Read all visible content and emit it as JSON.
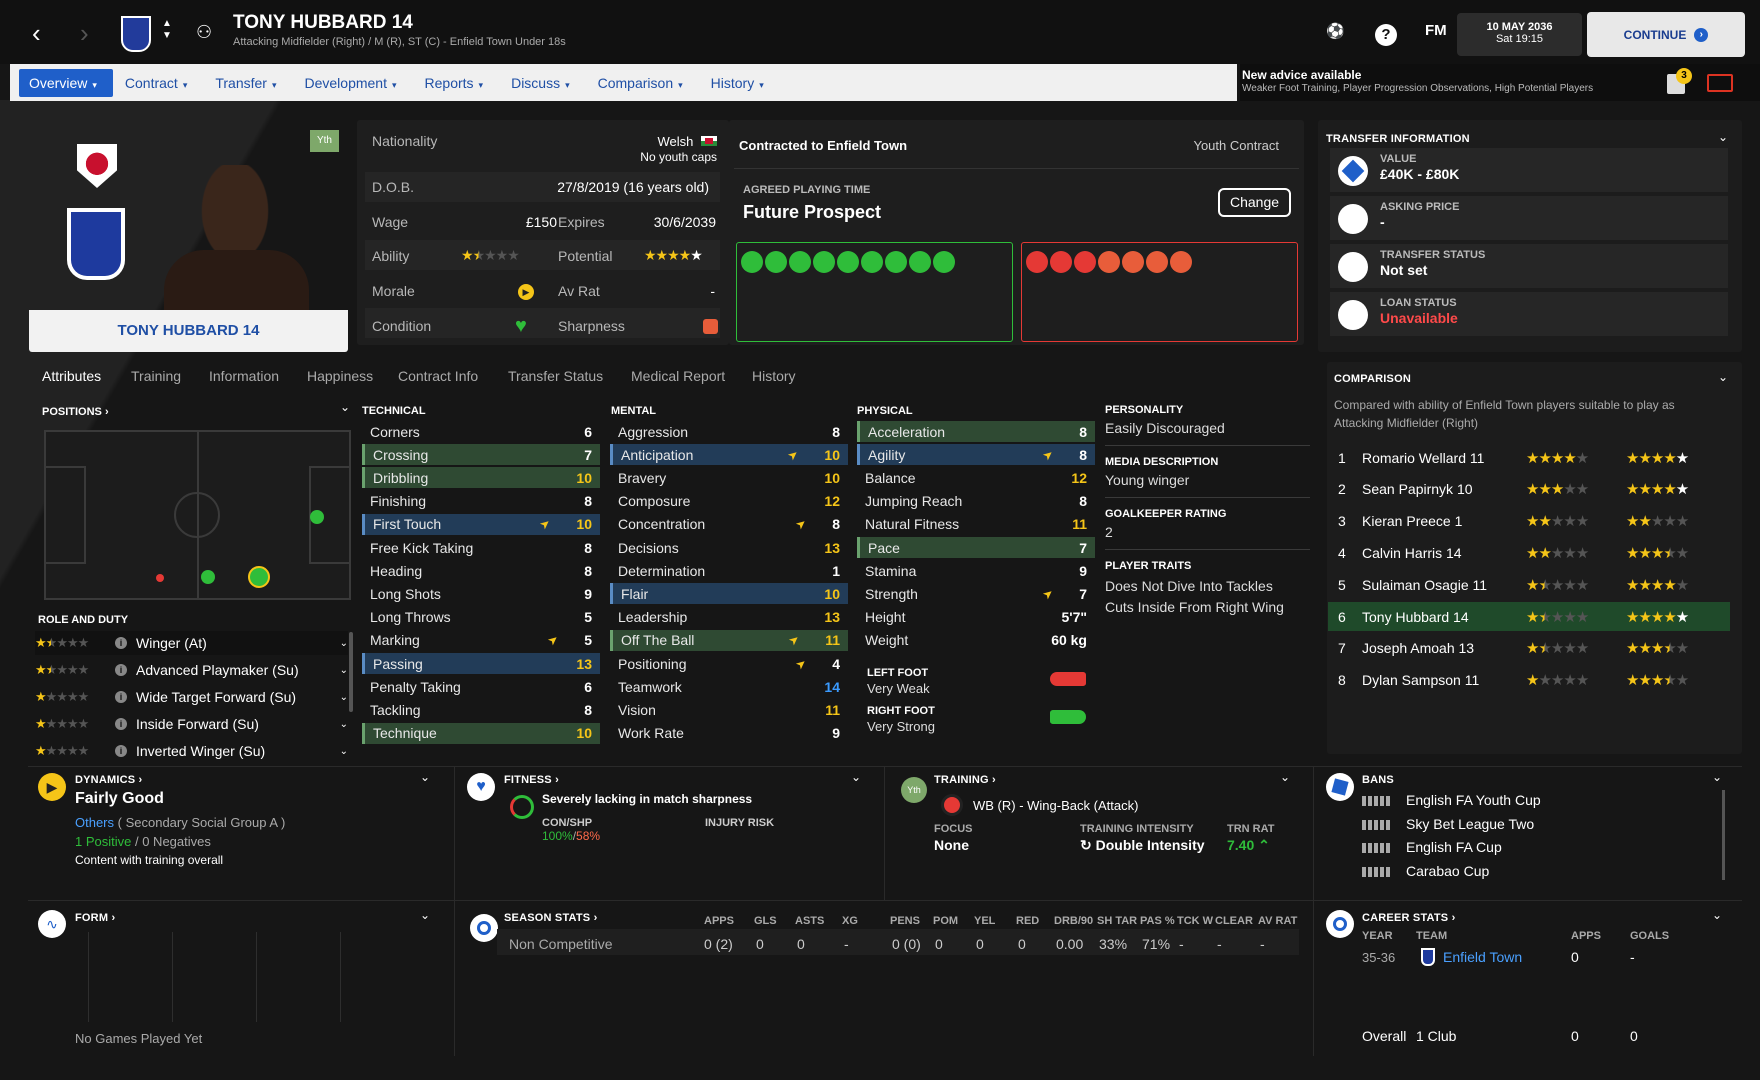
{
  "header": {
    "name": "TONY HUBBARD 14",
    "subtitle": "Attacking Midfielder (Right) / M (R), ST (C) - Enfield Town Under 18s",
    "fm_label": "FM",
    "date": "10 MAY 2036",
    "time": "Sat 19:15",
    "continue": "CONTINUE"
  },
  "menu": [
    "Overview",
    "Contract",
    "Transfer",
    "Development",
    "Reports",
    "Discuss",
    "Comparison",
    "History"
  ],
  "advice": {
    "title": "New advice available",
    "text": "Weaker Foot Training, Player Progression Observations, High Potential Players",
    "badge": "3"
  },
  "player_card": {
    "name": "TONY HUBBARD 14",
    "badge": "Yth"
  },
  "bio": {
    "nationality_label": "Nationality",
    "nationality": "Welsh",
    "caps": "No youth caps",
    "dob_label": "D.O.B.",
    "dob": "27/8/2019 (16 years old)",
    "wage_label": "Wage",
    "wage": "£150",
    "expires_label": "Expires",
    "expires": "30/6/2039",
    "ability_label": "Ability",
    "ability_stars": 1.5,
    "potential_label": "Potential",
    "potential_stars": 5,
    "morale_label": "Morale",
    "avrat_label": "Av Rat",
    "avrat": "-",
    "condition_label": "Condition",
    "sharpness_label": "Sharpness"
  },
  "contract": {
    "title": "Contracted to Enfield Town",
    "type": "Youth Contract",
    "playing_time_label": "AGREED PLAYING TIME",
    "playing_time": "Future Prospect",
    "change": "Change"
  },
  "colors": {
    "accent": "#1f5fc9",
    "green": "#2fbd3a",
    "red": "#e53935",
    "gold": "#f5c518"
  },
  "subtabs": [
    "Attributes",
    "Training",
    "Information",
    "Happiness",
    "Contract Info",
    "Transfer Status",
    "Medical Report",
    "History"
  ],
  "positions_label": "POSITIONS",
  "role_label": "ROLE AND DUTY",
  "roles": [
    {
      "name": "Winger (At)",
      "stars": 1.5
    },
    {
      "name": "Advanced Playmaker (Su)",
      "stars": 1.5
    },
    {
      "name": "Wide Target Forward (Su)",
      "stars": 1
    },
    {
      "name": "Inside Forward (Su)",
      "stars": 1
    },
    {
      "name": "Inverted Winger (Su)",
      "stars": 1
    }
  ],
  "technical_label": "TECHNICAL",
  "technical": [
    {
      "n": "Corners",
      "v": "6"
    },
    {
      "n": "Crossing",
      "v": "7"
    },
    {
      "n": "Dribbling",
      "v": "10"
    },
    {
      "n": "Finishing",
      "v": "8"
    },
    {
      "n": "First Touch",
      "v": "10"
    },
    {
      "n": "Free Kick Taking",
      "v": "8"
    },
    {
      "n": "Heading",
      "v": "8"
    },
    {
      "n": "Long Shots",
      "v": "9"
    },
    {
      "n": "Long Throws",
      "v": "5"
    },
    {
      "n": "Marking",
      "v": "5"
    },
    {
      "n": "Passing",
      "v": "13"
    },
    {
      "n": "Penalty Taking",
      "v": "6"
    },
    {
      "n": "Tackling",
      "v": "8"
    },
    {
      "n": "Technique",
      "v": "10"
    }
  ],
  "mental_label": "MENTAL",
  "mental": [
    {
      "n": "Aggression",
      "v": "8"
    },
    {
      "n": "Anticipation",
      "v": "10"
    },
    {
      "n": "Bravery",
      "v": "10"
    },
    {
      "n": "Composure",
      "v": "12"
    },
    {
      "n": "Concentration",
      "v": "8"
    },
    {
      "n": "Decisions",
      "v": "13"
    },
    {
      "n": "Determination",
      "v": "1"
    },
    {
      "n": "Flair",
      "v": "10"
    },
    {
      "n": "Leadership",
      "v": "13"
    },
    {
      "n": "Off The Ball",
      "v": "11"
    },
    {
      "n": "Positioning",
      "v": "4"
    },
    {
      "n": "Teamwork",
      "v": "14"
    },
    {
      "n": "Vision",
      "v": "11"
    },
    {
      "n": "Work Rate",
      "v": "9"
    }
  ],
  "physical_label": "PHYSICAL",
  "physical": [
    {
      "n": "Acceleration",
      "v": "8"
    },
    {
      "n": "Agility",
      "v": "8"
    },
    {
      "n": "Balance",
      "v": "12"
    },
    {
      "n": "Jumping Reach",
      "v": "8"
    },
    {
      "n": "Natural Fitness",
      "v": "11"
    },
    {
      "n": "Pace",
      "v": "7"
    },
    {
      "n": "Stamina",
      "v": "9"
    },
    {
      "n": "Strength",
      "v": "7"
    },
    {
      "n": "Height",
      "v": "5'7\""
    },
    {
      "n": "Weight",
      "v": "60 kg"
    }
  ],
  "feet": {
    "left_label": "LEFT FOOT",
    "left": "Very Weak",
    "right_label": "RIGHT FOOT",
    "right": "Very Strong"
  },
  "personality": {
    "label": "PERSONALITY",
    "value": "Easily Discouraged",
    "media_label": "MEDIA DESCRIPTION",
    "media": "Young winger",
    "gk_label": "GOALKEEPER RATING",
    "gk": "2",
    "traits_label": "PLAYER TRAITS",
    "trait1": "Does Not Dive Into Tackles",
    "trait2": "Cuts Inside From Right Wing"
  },
  "transfer": {
    "title": "TRANSFER INFORMATION",
    "value_label": "VALUE",
    "value": "£40K - £80K",
    "asking_label": "ASKING PRICE",
    "asking": "-",
    "status_label": "TRANSFER STATUS",
    "status": "Not set",
    "loan_label": "LOAN STATUS",
    "loan": "Unavailable"
  },
  "comparison": {
    "title": "COMPARISON",
    "desc": "Compared with ability of Enfield Town players suitable to play as Attacking Midfielder (Right)",
    "rows": [
      {
        "rank": "1",
        "name": "Romario Wellard 11",
        "ca": 4,
        "pa": 5
      },
      {
        "rank": "2",
        "name": "Sean Papirnyk 10",
        "ca": 3,
        "pa": 5
      },
      {
        "rank": "3",
        "name": "Kieran Preece 1",
        "ca": 2,
        "pa": 2
      },
      {
        "rank": "4",
        "name": "Calvin Harris 14",
        "ca": 2,
        "pa": 3.5
      },
      {
        "rank": "5",
        "name": "Sulaiman Osagie 11",
        "ca": 1.5,
        "pa": 4
      },
      {
        "rank": "6",
        "name": "Tony Hubbard 14",
        "ca": 1.5,
        "pa": 5
      },
      {
        "rank": "7",
        "name": "Joseph Amoah 13",
        "ca": 1.5,
        "pa": 3.5
      },
      {
        "rank": "8",
        "name": "Dylan Sampson 11",
        "ca": 1,
        "pa": 3.5
      }
    ]
  },
  "dynamics": {
    "title": "DYNAMICS",
    "value": "Fairly Good",
    "group": "Others",
    "group_detail": "( Secondary Social Group A )",
    "positives": "1 Positive",
    "negatives": "0 Negatives",
    "note": "Content with training overall"
  },
  "fitness": {
    "title": "FITNESS",
    "status": "Severely lacking in match sharpness",
    "conshp_label": "CON/SHP",
    "con": "100%",
    "shp": "58%",
    "injury_label": "INJURY RISK"
  },
  "training": {
    "title": "TRAINING",
    "badge": "Yth",
    "role": "WB (R) - Wing-Back (Attack)",
    "focus_label": "FOCUS",
    "focus": "None",
    "intensity_label": "TRAINING INTENSITY",
    "intensity": "Double Intensity",
    "trnrat_label": "TRN RAT",
    "trnrat": "7.40"
  },
  "bans": {
    "title": "BANS",
    "items": [
      "English FA Youth Cup",
      "Sky Bet League Two",
      "English FA Cup",
      "Carabao Cup"
    ]
  },
  "form": {
    "title": "FORM",
    "empty": "No Games Played Yet"
  },
  "season": {
    "title": "SEASON STATS",
    "headers": [
      "APPS",
      "GLS",
      "ASTS",
      "XG",
      "PENS",
      "POM",
      "YEL",
      "RED",
      "DRB/90",
      "SH TAR",
      "PAS %",
      "TCK W",
      "CLEAR",
      "AV RAT"
    ],
    "row_label": "Non Competitive",
    "values": [
      "0 (2)",
      "0",
      "0",
      "-",
      "0 (0)",
      "0",
      "0",
      "0",
      "0.00",
      "33%",
      "71%",
      "-",
      "-",
      "-"
    ]
  },
  "career": {
    "title": "CAREER STATS",
    "year_label": "YEAR",
    "team_label": "TEAM",
    "apps_label": "APPS",
    "goals_label": "GOALS",
    "year": "35-36",
    "team": "Enfield Town",
    "apps": "0",
    "goals": "-",
    "overall_label": "Overall",
    "overall_clubs": "1 Club",
    "overall_apps": "0",
    "overall_goals": "0"
  }
}
